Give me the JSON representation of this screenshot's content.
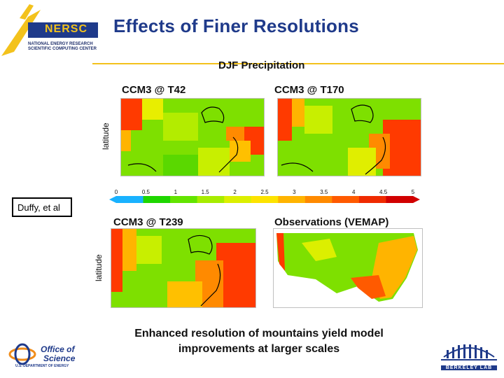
{
  "slide": {
    "title": "Effects of Finer Resolutions",
    "logo": {
      "name": "NERSC",
      "subtitle_lines": [
        "NATIONAL ENERGY RESEARCH",
        "SCIENTIFIC COMPUTING CENTER"
      ]
    },
    "caption_line1": "Enhanced resolution of mountains yield model",
    "caption_line2": "improvements at larger scales",
    "citation": "Duffy, et al",
    "office_of_science": {
      "line1": "Office of",
      "line2": "Science",
      "line3": "U.S. DEPARTMENT OF ENERGY"
    },
    "berkeley_lab": "BERKELEY LAB"
  },
  "figure": {
    "title": "DJF Precipitation",
    "axis_label": "latitude",
    "panels": [
      {
        "title": "CCM3 @ T42"
      },
      {
        "title": "CCM3 @ T170"
      },
      {
        "title": "CCM3 @ T239"
      },
      {
        "title": "Observations (VEMAP)"
      }
    ],
    "colorbar": {
      "ticks": [
        "0",
        "0.5",
        "1",
        "1.5",
        "2",
        "2.5",
        "3",
        "3.5",
        "4",
        "4.5",
        "5"
      ],
      "colors": [
        "#19b2ff",
        "#1fd600",
        "#63e400",
        "#a7ec00",
        "#dcef00",
        "#fde300",
        "#ffb400",
        "#ff8a00",
        "#ff5a00",
        "#ef2a00",
        "#d10000"
      ]
    }
  }
}
